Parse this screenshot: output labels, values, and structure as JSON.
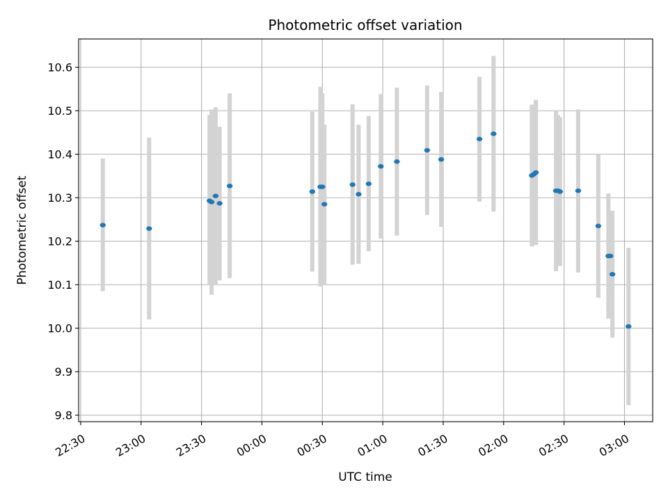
{
  "chart_data": {
    "type": "scatter",
    "title": "Photometric offset variation",
    "xlabel": "UTC time",
    "ylabel": "Photometric offset",
    "x_ticks": [
      "22:30",
      "23:00",
      "23:30",
      "00:00",
      "00:30",
      "01:00",
      "01:30",
      "02:00",
      "02:30",
      "03:00"
    ],
    "y_ticks": [
      "9.8",
      "9.9",
      "10.0",
      "10.1",
      "10.2",
      "10.3",
      "10.4",
      "10.5",
      "10.6"
    ],
    "xlim": [
      "22:29",
      "03:14"
    ],
    "ylim": [
      9.785,
      10.665
    ],
    "grid": true,
    "legend": "none",
    "colors": {
      "marker": "#1f77b4",
      "errorbar": "#d3d3d3",
      "grid": "#b0b0b0"
    },
    "points": [
      {
        "time": "22:41",
        "value": 10.237,
        "low": 10.085,
        "high": 10.39
      },
      {
        "time": "23:04",
        "value": 10.229,
        "low": 10.02,
        "high": 10.438
      },
      {
        "time": "23:34",
        "value": 10.293,
        "low": 10.1,
        "high": 10.49
      },
      {
        "time": "23:35",
        "value": 10.29,
        "low": 10.077,
        "high": 10.503
      },
      {
        "time": "23:37",
        "value": 10.304,
        "low": 10.1,
        "high": 10.508
      },
      {
        "time": "23:39",
        "value": 10.287,
        "low": 10.11,
        "high": 10.463
      },
      {
        "time": "23:44",
        "value": 10.327,
        "low": 10.115,
        "high": 10.54
      },
      {
        "time": "00:25",
        "value": 10.314,
        "low": 10.13,
        "high": 10.498
      },
      {
        "time": "00:29",
        "value": 10.325,
        "low": 10.096,
        "high": 10.555
      },
      {
        "time": "00:30",
        "value": 10.325,
        "low": 10.11,
        "high": 10.54
      },
      {
        "time": "00:31",
        "value": 10.285,
        "low": 10.1,
        "high": 10.468
      },
      {
        "time": "00:45",
        "value": 10.33,
        "low": 10.146,
        "high": 10.515
      },
      {
        "time": "00:48",
        "value": 10.308,
        "low": 10.148,
        "high": 10.468
      },
      {
        "time": "00:53",
        "value": 10.332,
        "low": 10.177,
        "high": 10.488
      },
      {
        "time": "00:59",
        "value": 10.372,
        "low": 10.206,
        "high": 10.538
      },
      {
        "time": "01:07",
        "value": 10.383,
        "low": 10.213,
        "high": 10.553
      },
      {
        "time": "01:22",
        "value": 10.409,
        "low": 10.26,
        "high": 10.558
      },
      {
        "time": "01:29",
        "value": 10.388,
        "low": 10.233,
        "high": 10.543
      },
      {
        "time": "01:48",
        "value": 10.435,
        "low": 10.291,
        "high": 10.578
      },
      {
        "time": "01:55",
        "value": 10.447,
        "low": 10.268,
        "high": 10.626
      },
      {
        "time": "02:14",
        "value": 10.351,
        "low": 10.188,
        "high": 10.514
      },
      {
        "time": "02:15",
        "value": 10.354,
        "low": 10.2,
        "high": 10.508
      },
      {
        "time": "02:16",
        "value": 10.358,
        "low": 10.191,
        "high": 10.525
      },
      {
        "time": "02:26",
        "value": 10.316,
        "low": 10.131,
        "high": 10.5
      },
      {
        "time": "02:27",
        "value": 10.316,
        "low": 10.15,
        "high": 10.49
      },
      {
        "time": "02:28",
        "value": 10.314,
        "low": 10.143,
        "high": 10.485
      },
      {
        "time": "02:37",
        "value": 10.316,
        "low": 10.128,
        "high": 10.503
      },
      {
        "time": "02:47",
        "value": 10.235,
        "low": 10.07,
        "high": 10.4
      },
      {
        "time": "02:52",
        "value": 10.166,
        "low": 10.022,
        "high": 10.31
      },
      {
        "time": "02:53",
        "value": 10.166,
        "low": 10.062,
        "high": 10.27
      },
      {
        "time": "02:54",
        "value": 10.124,
        "low": 9.978,
        "high": 10.27
      },
      {
        "time": "03:02",
        "value": 10.004,
        "low": 9.823,
        "high": 10.185
      }
    ]
  }
}
